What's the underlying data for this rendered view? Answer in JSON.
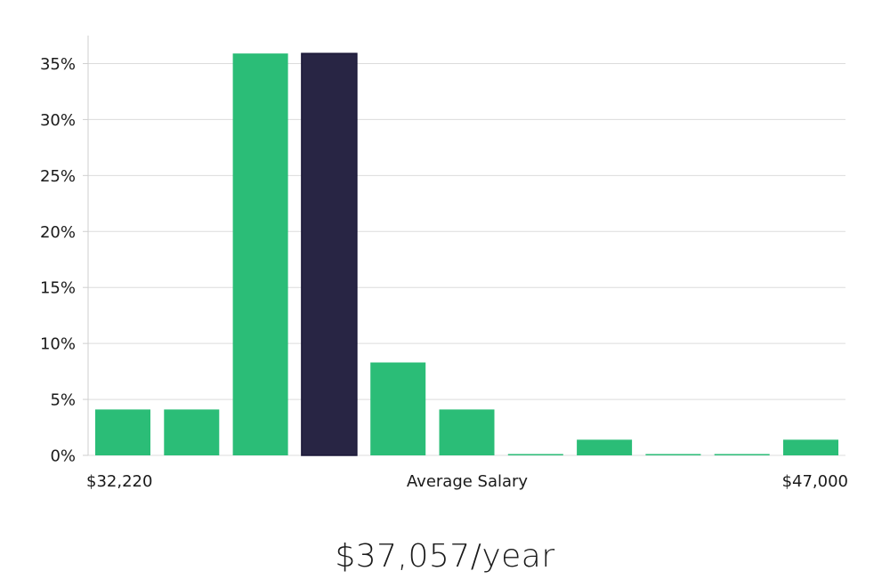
{
  "chart_data": {
    "type": "bar",
    "title": "",
    "xlabel": "Average Salary",
    "ylabel": "",
    "x_min_label": "$32,220",
    "x_max_label": "$47,000",
    "ylim": [
      0,
      37.5
    ],
    "y_ticks": [
      0,
      5,
      10,
      15,
      20,
      25,
      30,
      35
    ],
    "y_tick_labels": [
      "0%",
      "5%",
      "10%",
      "15%",
      "20%",
      "25%",
      "30%",
      "35%"
    ],
    "grid": true,
    "legend": "none",
    "values": [
      4.1,
      4.1,
      35.9,
      35.9,
      8.3,
      4.1,
      0,
      1.4,
      0,
      0,
      1.4
    ],
    "highlight_index": 3,
    "colors": {
      "bar": "#2bbd77",
      "highlight": "#282544",
      "grid": "#dcdcdc",
      "axis": "#cfcfcf"
    }
  },
  "summary": {
    "salary_text": "$37,057/year"
  }
}
